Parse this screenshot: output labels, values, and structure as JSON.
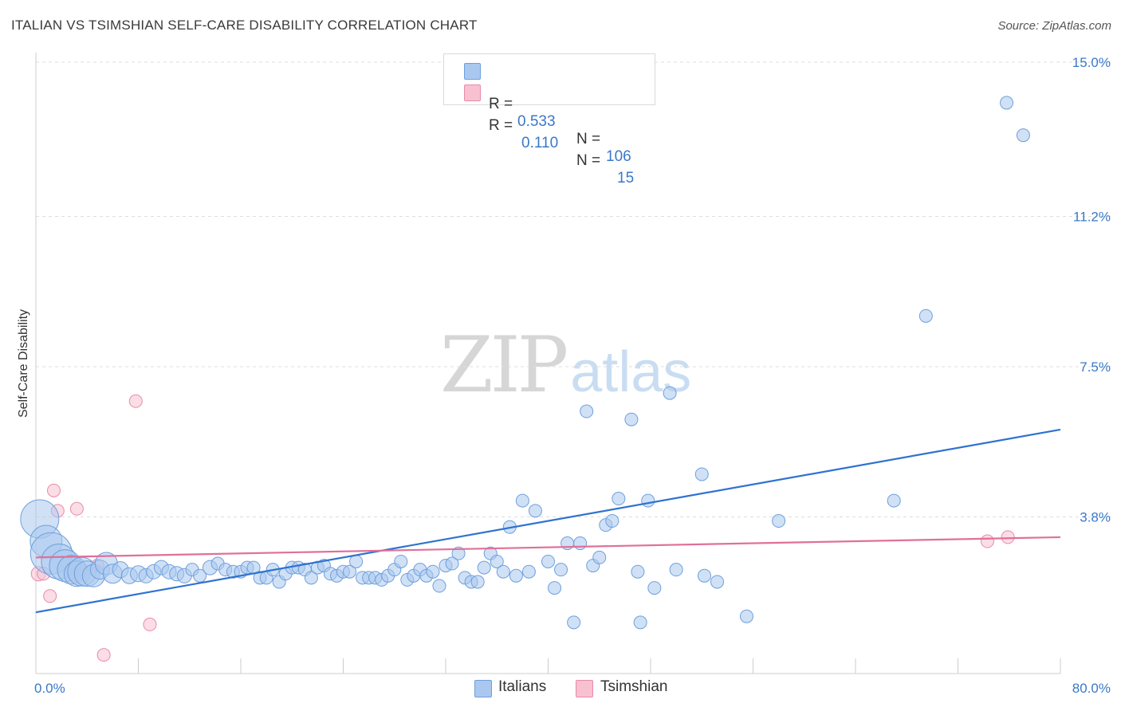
{
  "header": {
    "title": "ITALIAN VS TSIMSHIAN SELF-CARE DISABILITY CORRELATION CHART",
    "source": "Source: ZipAtlas.com"
  },
  "watermark": {
    "zip": "ZIP",
    "atlas": "atlas"
  },
  "legend_top": {
    "italians": {
      "r_label": "R = ",
      "r_value": "0.533",
      "n_label": "N = ",
      "n_value": "106"
    },
    "tsimshian": {
      "r_label": "R = ",
      "r_value": "0.110",
      "n_label": "N = ",
      "n_value": "15"
    }
  },
  "legend_bottom": {
    "italians": "Italians",
    "tsimshian": "Tsimshian"
  },
  "colors": {
    "italians_fill": "#aac8ef",
    "italians_stroke": "#6e9fdc",
    "italians_line": "#2f72d0",
    "tsimshian_fill": "#f7c1d1",
    "tsimshian_stroke": "#e98aa8",
    "tsimshian_line": "#e0709a",
    "tick_text": "#3a78c9"
  },
  "chart_data": {
    "type": "scatter",
    "title": "ITALIAN VS TSIMSHIAN SELF-CARE DISABILITY CORRELATION CHART",
    "xlabel": "",
    "ylabel": "Self-Care Disability",
    "xlim": [
      0,
      80
    ],
    "ylim": [
      0,
      15.5
    ],
    "x_tick_labels": [
      "0.0%",
      "80.0%"
    ],
    "y_ticks": [
      3.8,
      7.5,
      11.2,
      15.0
    ],
    "y_tick_labels": [
      "3.8%",
      "7.5%",
      "11.2%",
      "15.0%"
    ],
    "grid": true,
    "legend_position": "top-center",
    "series": [
      {
        "name": "Italians",
        "r": 0.533,
        "n": 106,
        "trend": [
          [
            0,
            1.45
          ],
          [
            80,
            5.95
          ]
        ],
        "points": [
          [
            0.3,
            3.75,
            24
          ],
          [
            0.8,
            3.2,
            20
          ],
          [
            1.2,
            2.9,
            26
          ],
          [
            1.8,
            2.7,
            22
          ],
          [
            2.3,
            2.6,
            20
          ],
          [
            2.8,
            2.5,
            18
          ],
          [
            3.2,
            2.4,
            16
          ],
          [
            3.6,
            2.45,
            18
          ],
          [
            4.0,
            2.4,
            16
          ],
          [
            4.5,
            2.35,
            14
          ],
          [
            5.0,
            2.5,
            12
          ],
          [
            5.5,
            2.65,
            14
          ],
          [
            6.0,
            2.4,
            12
          ],
          [
            6.6,
            2.5,
            10
          ],
          [
            7.3,
            2.35,
            10
          ],
          [
            8.0,
            2.4,
            10
          ],
          [
            8.6,
            2.35,
            9
          ],
          [
            9.2,
            2.45,
            9
          ],
          [
            9.8,
            2.55,
            9
          ],
          [
            10.4,
            2.45,
            9
          ],
          [
            11.0,
            2.4,
            9
          ],
          [
            11.6,
            2.35,
            9
          ],
          [
            12.2,
            2.5,
            8
          ],
          [
            12.8,
            2.35,
            8
          ],
          [
            13.6,
            2.55,
            9
          ],
          [
            14.2,
            2.65,
            8
          ],
          [
            14.8,
            2.5,
            8
          ],
          [
            15.4,
            2.45,
            8
          ],
          [
            16.0,
            2.45,
            8
          ],
          [
            16.5,
            2.55,
            8
          ],
          [
            17.0,
            2.55,
            8
          ],
          [
            17.5,
            2.3,
            8
          ],
          [
            18.0,
            2.3,
            8
          ],
          [
            18.5,
            2.5,
            8
          ],
          [
            19.0,
            2.2,
            8
          ],
          [
            19.5,
            2.4,
            8
          ],
          [
            20.0,
            2.55,
            8
          ],
          [
            20.5,
            2.55,
            8
          ],
          [
            21.0,
            2.5,
            8
          ],
          [
            21.5,
            2.3,
            8
          ],
          [
            22.0,
            2.55,
            8
          ],
          [
            22.5,
            2.6,
            8
          ],
          [
            23.0,
            2.4,
            8
          ],
          [
            23.5,
            2.35,
            8
          ],
          [
            24.0,
            2.45,
            8
          ],
          [
            24.5,
            2.45,
            8
          ],
          [
            25.0,
            2.7,
            8
          ],
          [
            25.5,
            2.3,
            8
          ],
          [
            26.0,
            2.3,
            8
          ],
          [
            26.5,
            2.3,
            8
          ],
          [
            27.0,
            2.25,
            8
          ],
          [
            27.5,
            2.35,
            8
          ],
          [
            28.0,
            2.5,
            8
          ],
          [
            28.5,
            2.7,
            8
          ],
          [
            29.0,
            2.25,
            8
          ],
          [
            29.5,
            2.35,
            8
          ],
          [
            30.0,
            2.5,
            8
          ],
          [
            30.5,
            2.35,
            8
          ],
          [
            31.0,
            2.45,
            8
          ],
          [
            31.5,
            2.1,
            8
          ],
          [
            32.0,
            2.6,
            8
          ],
          [
            32.5,
            2.65,
            8
          ],
          [
            33.0,
            2.9,
            8
          ],
          [
            33.5,
            2.3,
            8
          ],
          [
            34.0,
            2.2,
            8
          ],
          [
            34.5,
            2.2,
            8
          ],
          [
            35.0,
            2.55,
            8
          ],
          [
            35.5,
            2.9,
            8
          ],
          [
            36.0,
            2.7,
            8
          ],
          [
            36.5,
            2.45,
            8
          ],
          [
            37.0,
            3.55,
            8
          ],
          [
            37.5,
            2.35,
            8
          ],
          [
            38.0,
            4.2,
            8
          ],
          [
            38.5,
            2.45,
            8
          ],
          [
            39.0,
            3.95,
            8
          ],
          [
            40.0,
            2.7,
            8
          ],
          [
            40.5,
            2.05,
            8
          ],
          [
            41.0,
            2.5,
            8
          ],
          [
            41.5,
            3.15,
            8
          ],
          [
            42.0,
            1.2,
            8
          ],
          [
            42.5,
            3.15,
            8
          ],
          [
            43.0,
            6.4,
            8
          ],
          [
            43.5,
            2.6,
            8
          ],
          [
            44.0,
            2.8,
            8
          ],
          [
            44.5,
            3.6,
            8
          ],
          [
            45.0,
            3.7,
            8
          ],
          [
            45.5,
            4.25,
            8
          ],
          [
            46.5,
            6.2,
            8
          ],
          [
            47.0,
            2.45,
            8
          ],
          [
            47.2,
            1.2,
            8
          ],
          [
            47.8,
            4.2,
            8
          ],
          [
            48.3,
            2.05,
            8
          ],
          [
            49.5,
            6.85,
            8
          ],
          [
            50.0,
            2.5,
            8
          ],
          [
            52.0,
            4.85,
            8
          ],
          [
            52.2,
            2.35,
            8
          ],
          [
            53.2,
            2.2,
            8
          ],
          [
            55.5,
            1.35,
            8
          ],
          [
            58.0,
            3.7,
            8
          ],
          [
            67.0,
            4.2,
            8
          ],
          [
            69.5,
            8.75,
            8
          ],
          [
            75.8,
            14.0,
            8
          ],
          [
            77.1,
            13.2,
            8
          ]
        ]
      },
      {
        "name": "Tsimshian",
        "r": 0.11,
        "n": 15,
        "trend": [
          [
            0,
            2.8
          ],
          [
            80,
            3.3
          ]
        ],
        "points": [
          [
            0.2,
            2.4,
            9
          ],
          [
            0.6,
            2.4,
            8
          ],
          [
            1.1,
            1.85,
            8
          ],
          [
            1.4,
            4.45,
            8
          ],
          [
            1.7,
            3.95,
            8
          ],
          [
            2.8,
            2.5,
            8
          ],
          [
            3.0,
            2.35,
            8
          ],
          [
            3.2,
            4.0,
            8
          ],
          [
            3.5,
            2.5,
            8
          ],
          [
            4.8,
            2.6,
            8
          ],
          [
            5.3,
            0.4,
            8
          ],
          [
            7.8,
            6.65,
            8
          ],
          [
            8.9,
            1.15,
            8
          ],
          [
            74.3,
            3.2,
            8
          ],
          [
            75.9,
            3.3,
            8
          ]
        ]
      }
    ]
  }
}
